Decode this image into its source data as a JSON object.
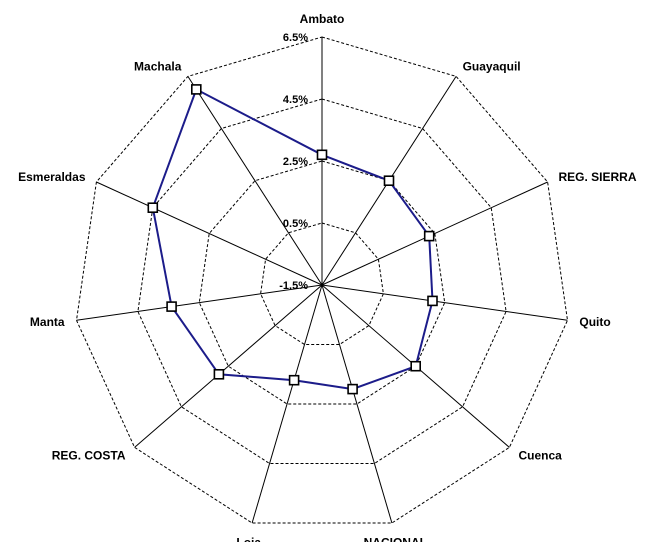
{
  "chart_data": {
    "type": "radar",
    "title": "",
    "categories": [
      "Ambato",
      "Guayaquil",
      "REG. SIERRA",
      "Quito",
      "Cuenca",
      "NACIONAL",
      "Loja",
      "REG. COSTA",
      "Manta",
      "Esmeraldas",
      "Machala"
    ],
    "series": [
      {
        "values": [
          2.7,
          2.5,
          2.3,
          2.1,
          2.5,
          2.0,
          1.7,
          2.9,
          3.4,
          4.5,
          6.0
        ]
      }
    ],
    "ticks": [
      "6.5%",
      "4.5%",
      "2.5%",
      "0.5%",
      "-1.5%"
    ],
    "tick_values": [
      6.5,
      4.5,
      2.5,
      0.5,
      -1.5
    ],
    "range": [
      -1.5,
      6.5
    ],
    "grid": true,
    "colors": {
      "series": "#1c1c8a",
      "grid": "#000000",
      "marker_fill": "#ffffff"
    }
  }
}
